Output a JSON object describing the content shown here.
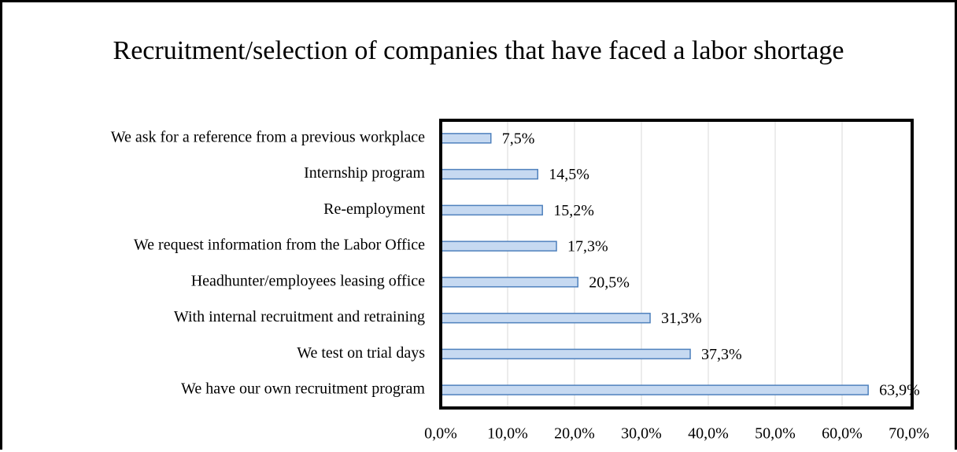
{
  "chart_data": {
    "type": "barh",
    "title": "Recruitment/selection of companies that have faced a labor shortage",
    "categories": [
      "We ask for a reference from a previous workplace",
      "Internship program",
      "Re-employment",
      "We request information from the Labor Office",
      "Headhunter/employees leasing office",
      "With internal recruitment and retraining",
      "We test on trial days",
      "We have our own recruitment program"
    ],
    "values": [
      7.5,
      14.5,
      15.2,
      17.3,
      20.5,
      31.3,
      37.3,
      63.9
    ],
    "value_labels": [
      "7,5%",
      "14,5%",
      "15,2%",
      "17,3%",
      "20,5%",
      "31,3%",
      "37,3%",
      "63,9%"
    ],
    "color": "#c6d9f1",
    "edge_color": "#4f81bd",
    "xlim": [
      0,
      70
    ],
    "xticks": [
      {
        "value": 0,
        "label": "0,0%"
      },
      {
        "value": 10,
        "label": "10,0%"
      },
      {
        "value": 20,
        "label": "20,0%"
      },
      {
        "value": 30,
        "label": "30,0%"
      },
      {
        "value": 40,
        "label": "40,0%"
      },
      {
        "value": 50,
        "label": "50,0%"
      },
      {
        "value": 60,
        "label": "60,0%"
      },
      {
        "value": 70,
        "label": "70,0%"
      }
    ],
    "grid": true
  }
}
